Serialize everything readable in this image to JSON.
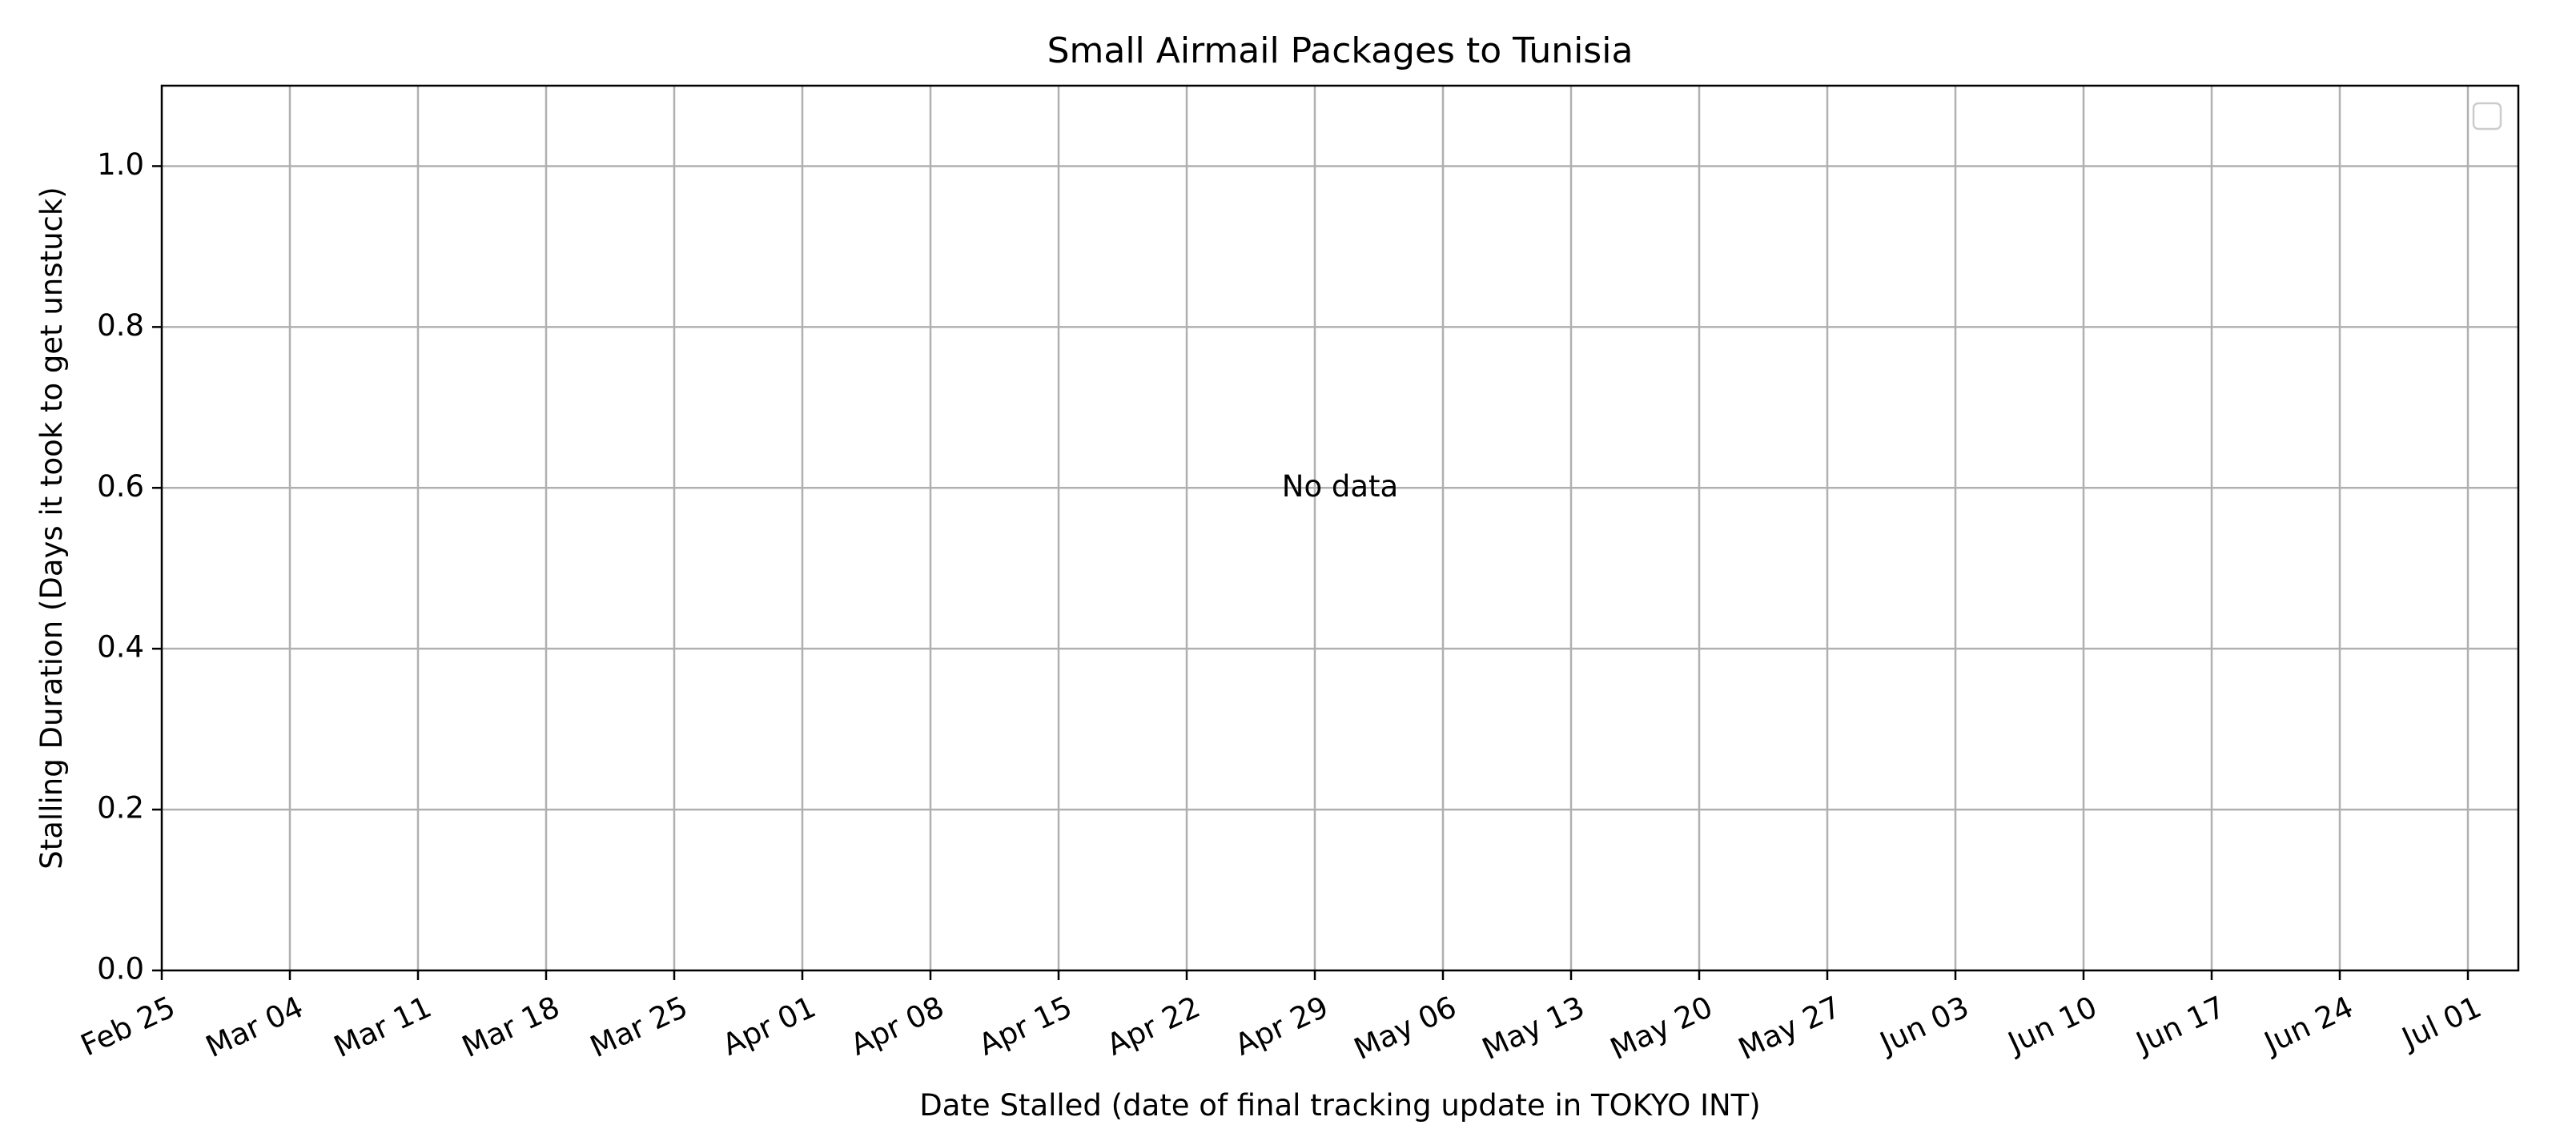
{
  "chart_data": {
    "type": "scatter",
    "title": "Small Airmail Packages to Tunisia",
    "xlabel": "Date Stalled (date of final tracking update in TOKYO INT)",
    "ylabel": "Stalling Duration (Days it took to get unstuck)",
    "x_ticks": [
      "Feb 25",
      "Mar 04",
      "Mar 11",
      "Mar 18",
      "Mar 25",
      "Apr 01",
      "Apr 08",
      "Apr 15",
      "Apr 22",
      "Apr 29",
      "May 06",
      "May 13",
      "May 20",
      "May 27",
      "Jun 03",
      "Jun 10",
      "Jun 17",
      "Jun 24",
      "Jul 01"
    ],
    "y_ticks": [
      "0.0",
      "0.2",
      "0.4",
      "0.6",
      "0.8",
      "1.0"
    ],
    "y_tick_values": [
      0.0,
      0.2,
      0.4,
      0.6,
      0.8,
      1.0
    ],
    "ylim": [
      0.0,
      1.1
    ],
    "series": [],
    "annotation": "No data",
    "grid": true,
    "legend": "top-right",
    "legend_entries": []
  },
  "colors": {
    "grid": "#b0b0b0",
    "axes": "#000000",
    "legend_border": "#cccccc"
  }
}
